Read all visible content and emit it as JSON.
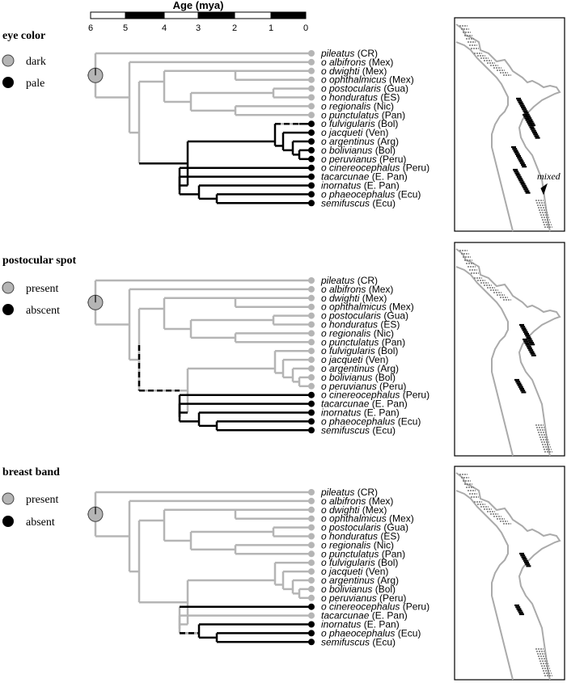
{
  "scale": {
    "title": "Age (mya)",
    "ticks": [
      "6",
      "5",
      "4",
      "3",
      "2",
      "1",
      "0"
    ]
  },
  "colors": {
    "gray_state": "#b5b5b5",
    "black_state": "#000000",
    "map_gray": "#aaaaaa"
  },
  "taxa": [
    {
      "prefix": "",
      "epithet": "pileatus",
      "loc": "(CR)"
    },
    {
      "prefix": "o ",
      "epithet": "albifrons",
      "loc": "(Mex)"
    },
    {
      "prefix": "o ",
      "epithet": "dwighti",
      "loc": "(Mex)"
    },
    {
      "prefix": "o ",
      "epithet": "ophthalmicus",
      "loc": "(Mex)"
    },
    {
      "prefix": "o ",
      "epithet": "postocularis",
      "loc": "(Gua)"
    },
    {
      "prefix": "o ",
      "epithet": "honduratus",
      "loc": "(ES)"
    },
    {
      "prefix": "o ",
      "epithet": "regionalis",
      "loc": "(Nic)"
    },
    {
      "prefix": "o ",
      "epithet": "punctulatus",
      "loc": "(Pan)"
    },
    {
      "prefix": "o ",
      "epithet": "fulvigularis",
      "loc": "(Bol)"
    },
    {
      "prefix": "o ",
      "epithet": "jacqueti",
      "loc": "(Ven)"
    },
    {
      "prefix": "o ",
      "epithet": "argentinus",
      "loc": "(Arg)"
    },
    {
      "prefix": "o ",
      "epithet": "bolivianus",
      "loc": "(Bol)"
    },
    {
      "prefix": "o ",
      "epithet": "peruvianus",
      "loc": "(Peru)"
    },
    {
      "prefix": "o ",
      "epithet": "cinereocephalus",
      "loc": "(Peru)"
    },
    {
      "prefix": "",
      "epithet": "tacarcunae",
      "loc": "(E. Pan)"
    },
    {
      "prefix": "",
      "epithet": "inornatus",
      "loc": "(E. Pan)"
    },
    {
      "prefix": "o ",
      "epithet": "phaeocephalus",
      "loc": "(Ecu)"
    },
    {
      "prefix": "",
      "epithet": "semifuscus",
      "loc": "(Ecu)"
    }
  ],
  "panels": [
    {
      "title": "eye color",
      "legend": [
        "dark",
        "pale"
      ],
      "tip_states": [
        "g",
        "g",
        "g",
        "g",
        "g",
        "g",
        "g",
        "g",
        "b",
        "b",
        "b",
        "b",
        "b",
        "b",
        "b",
        "b",
        "b",
        "b"
      ],
      "map_annotation": "mixed"
    },
    {
      "title": "postocular spot",
      "legend": [
        "present",
        "abscent"
      ],
      "tip_states": [
        "g",
        "g",
        "g",
        "g",
        "g",
        "g",
        "g",
        "g",
        "g",
        "g",
        "g",
        "g",
        "g",
        "b",
        "b",
        "b",
        "b",
        "b"
      ],
      "map_annotation": ""
    },
    {
      "title": "breast band",
      "legend": [
        "present",
        "absent"
      ],
      "tip_states": [
        "g",
        "g",
        "g",
        "g",
        "g",
        "g",
        "g",
        "g",
        "g",
        "g",
        "g",
        "g",
        "g",
        "b",
        "g",
        "b",
        "b",
        "b"
      ],
      "map_annotation": ""
    }
  ]
}
